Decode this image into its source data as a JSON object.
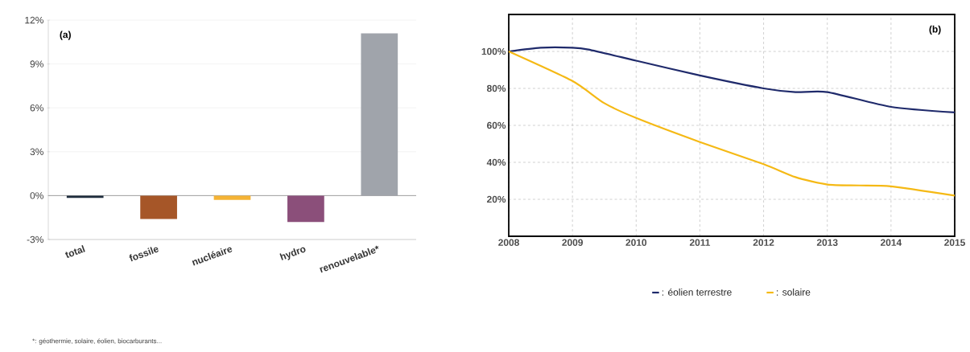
{
  "chart_data": [
    {
      "type": "bar",
      "categories": [
        "total",
        "fossile",
        "nucléaire",
        "hydro",
        "renouvelable*"
      ],
      "values": [
        -0.15,
        -1.6,
        -0.3,
        -1.8,
        11.1
      ],
      "colors": [
        "#1f2d3d",
        "#a65628",
        "#f5b335",
        "#8b4f7a",
        "#a0a4ab"
      ],
      "ylim": [
        -3,
        12
      ],
      "yticks": [
        {
          "value": -3,
          "label": "-3%"
        },
        {
          "value": 0,
          "label": "0%"
        },
        {
          "value": 3,
          "label": "3%"
        },
        {
          "value": 6,
          "label": "6%"
        },
        {
          "value": 9,
          "label": "9%"
        },
        {
          "value": 12,
          "label": "12%"
        }
      ],
      "grid": "y",
      "annotations": [
        "(a)",
        "*: géothermie, solaire, éolien, biocarburants..."
      ]
    },
    {
      "type": "line",
      "series": [
        {
          "name": ": éolien terrestre",
          "color": "#1f2a6b",
          "x": [
            2008,
            2008.5,
            2009,
            2009.25,
            2010,
            2011,
            2012,
            2012.5,
            2013,
            2014,
            2015
          ],
          "values": [
            100,
            102,
            102,
            101,
            95,
            87,
            80,
            78,
            78,
            70,
            67
          ]
        },
        {
          "name": ": solaire",
          "color": "#f5b915",
          "x": [
            2008,
            2009,
            2009.5,
            2010,
            2011,
            2012,
            2012.5,
            2013,
            2013.5,
            2014,
            2015
          ],
          "values": [
            100,
            84,
            72,
            64,
            51,
            39,
            32,
            28,
            27.5,
            27,
            22
          ]
        }
      ],
      "xlim": [
        2008,
        2015
      ],
      "ylim": [
        0,
        120
      ],
      "xticks": [
        2008,
        2009,
        2010,
        2011,
        2012,
        2013,
        2014,
        2015
      ],
      "yticks": [
        {
          "value": 20,
          "label": "20%"
        },
        {
          "value": 40,
          "label": "40%"
        },
        {
          "value": 60,
          "label": "60%"
        },
        {
          "value": 80,
          "label": "80%"
        },
        {
          "value": 100,
          "label": "100%"
        }
      ],
      "grid": true,
      "legend": "bottom",
      "annotations": [
        "(b)"
      ]
    }
  ]
}
